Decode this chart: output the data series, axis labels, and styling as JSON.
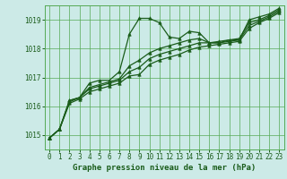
{
  "background_color": "#cceae7",
  "grid_color": "#55aa55",
  "line_color": "#1a5c1a",
  "xlabel": "Graphe pression niveau de la mer (hPa)",
  "ylim": [
    1014.5,
    1019.5
  ],
  "xlim": [
    -0.5,
    23.5
  ],
  "yticks": [
    1015,
    1016,
    1017,
    1018,
    1019
  ],
  "xticks": [
    0,
    1,
    2,
    3,
    4,
    5,
    6,
    7,
    8,
    9,
    10,
    11,
    12,
    13,
    14,
    15,
    16,
    17,
    18,
    19,
    20,
    21,
    22,
    23
  ],
  "tick_fontsize": 5.5,
  "xlabel_fontsize": 6.5,
  "series": [
    {
      "x": [
        0,
        1,
        2,
        3,
        4,
        5,
        6,
        7,
        8,
        9,
        10,
        11,
        12,
        13,
        14,
        15,
        16,
        17,
        18,
        19,
        20,
        21,
        22,
        23
      ],
      "y": [
        1014.9,
        1015.2,
        1016.2,
        1016.3,
        1016.8,
        1016.9,
        1016.9,
        1017.2,
        1018.5,
        1019.05,
        1019.05,
        1018.9,
        1018.4,
        1018.35,
        1018.6,
        1018.55,
        1018.2,
        1018.2,
        1018.3,
        1018.3,
        1019.0,
        1019.1,
        1019.2,
        1019.4
      ],
      "marker": "^",
      "markersize": 2.5,
      "linewidth": 0.9
    },
    {
      "x": [
        0,
        1,
        2,
        3,
        4,
        5,
        6,
        7,
        8,
        9,
        10,
        11,
        12,
        13,
        14,
        15,
        16,
        17,
        18,
        19,
        20,
        21,
        22,
        23
      ],
      "y": [
        1014.9,
        1015.2,
        1016.2,
        1016.3,
        1016.65,
        1016.75,
        1016.85,
        1016.95,
        1017.4,
        1017.6,
        1017.85,
        1018.0,
        1018.1,
        1018.2,
        1018.3,
        1018.35,
        1018.2,
        1018.25,
        1018.3,
        1018.35,
        1018.9,
        1019.0,
        1019.15,
        1019.35
      ],
      "marker": "^",
      "markersize": 2.5,
      "linewidth": 0.9
    },
    {
      "x": [
        0,
        1,
        2,
        3,
        4,
        5,
        6,
        7,
        8,
        9,
        10,
        11,
        12,
        13,
        14,
        15,
        16,
        17,
        18,
        19,
        20,
        21,
        22,
        23
      ],
      "y": [
        1014.9,
        1015.2,
        1016.15,
        1016.3,
        1016.6,
        1016.7,
        1016.8,
        1016.9,
        1017.2,
        1017.35,
        1017.65,
        1017.8,
        1017.9,
        1018.0,
        1018.1,
        1018.2,
        1018.2,
        1018.2,
        1018.25,
        1018.3,
        1018.8,
        1018.95,
        1019.1,
        1019.3
      ],
      "marker": "^",
      "markersize": 2.5,
      "linewidth": 0.9
    },
    {
      "x": [
        0,
        1,
        2,
        3,
        4,
        5,
        6,
        7,
        8,
        9,
        10,
        11,
        12,
        13,
        14,
        15,
        16,
        17,
        18,
        19,
        20,
        21,
        22,
        23
      ],
      "y": [
        1014.9,
        1015.2,
        1016.1,
        1016.25,
        1016.5,
        1016.6,
        1016.7,
        1016.8,
        1017.05,
        1017.1,
        1017.45,
        1017.6,
        1017.7,
        1017.8,
        1017.95,
        1018.05,
        1018.1,
        1018.15,
        1018.2,
        1018.25,
        1018.7,
        1018.9,
        1019.05,
        1019.25
      ],
      "marker": "^",
      "markersize": 2.5,
      "linewidth": 0.9
    }
  ]
}
